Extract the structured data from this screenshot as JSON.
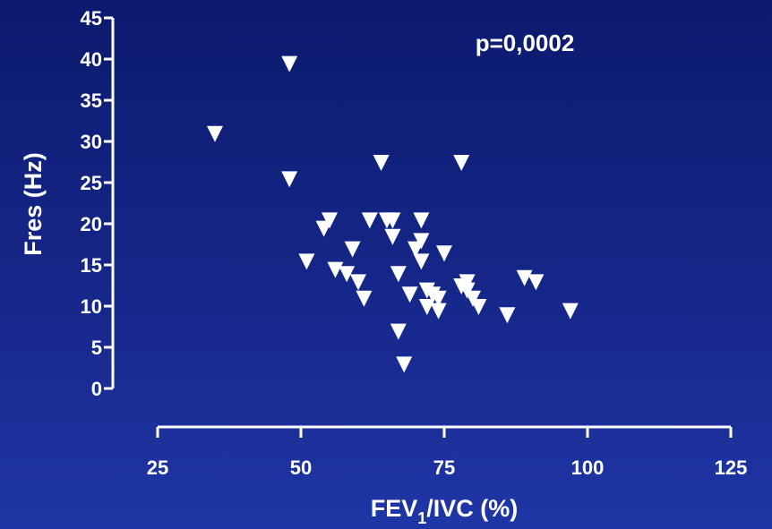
{
  "chart_data": {
    "type": "scatter",
    "title": "",
    "xlabel_parts": [
      "FEV",
      "1",
      "/IVC (%)"
    ],
    "ylabel": "Fres (Hz)",
    "annotation": "p=0,0002",
    "xlim": [
      25,
      125
    ],
    "ylim": [
      0,
      45
    ],
    "x_ticks": [
      25,
      50,
      75,
      100,
      125
    ],
    "y_ticks": [
      0,
      5,
      10,
      15,
      20,
      25,
      30,
      35,
      40,
      45
    ],
    "marker": "triangle-down",
    "colors": {
      "background": "#13237f",
      "axis": "#ffffff",
      "marker": "#ffffff"
    },
    "points": [
      {
        "x": 35,
        "y": 31
      },
      {
        "x": 48,
        "y": 39.5
      },
      {
        "x": 48,
        "y": 25.5
      },
      {
        "x": 51,
        "y": 15.5
      },
      {
        "x": 54,
        "y": 19.5
      },
      {
        "x": 55,
        "y": 20.5
      },
      {
        "x": 56,
        "y": 14.5
      },
      {
        "x": 58,
        "y": 14
      },
      {
        "x": 59,
        "y": 17
      },
      {
        "x": 60,
        "y": 13
      },
      {
        "x": 61,
        "y": 11
      },
      {
        "x": 62,
        "y": 20.5
      },
      {
        "x": 64,
        "y": 27.5
      },
      {
        "x": 65,
        "y": 20.5
      },
      {
        "x": 66,
        "y": 20.5
      },
      {
        "x": 66,
        "y": 18.5
      },
      {
        "x": 67,
        "y": 14
      },
      {
        "x": 67,
        "y": 7
      },
      {
        "x": 68,
        "y": 3
      },
      {
        "x": 69,
        "y": 11.5
      },
      {
        "x": 70,
        "y": 17
      },
      {
        "x": 71,
        "y": 20.5
      },
      {
        "x": 71,
        "y": 18
      },
      {
        "x": 71,
        "y": 15.5
      },
      {
        "x": 72,
        "y": 12
      },
      {
        "x": 72,
        "y": 10
      },
      {
        "x": 73,
        "y": 11.5
      },
      {
        "x": 74,
        "y": 9.5
      },
      {
        "x": 74,
        "y": 11
      },
      {
        "x": 75,
        "y": 16.5
      },
      {
        "x": 78,
        "y": 27.5
      },
      {
        "x": 78,
        "y": 12.5
      },
      {
        "x": 79,
        "y": 13
      },
      {
        "x": 79,
        "y": 12
      },
      {
        "x": 80,
        "y": 11
      },
      {
        "x": 81,
        "y": 10
      },
      {
        "x": 86,
        "y": 9
      },
      {
        "x": 89,
        "y": 13.5
      },
      {
        "x": 91,
        "y": 13
      },
      {
        "x": 97,
        "y": 9.5
      }
    ]
  }
}
